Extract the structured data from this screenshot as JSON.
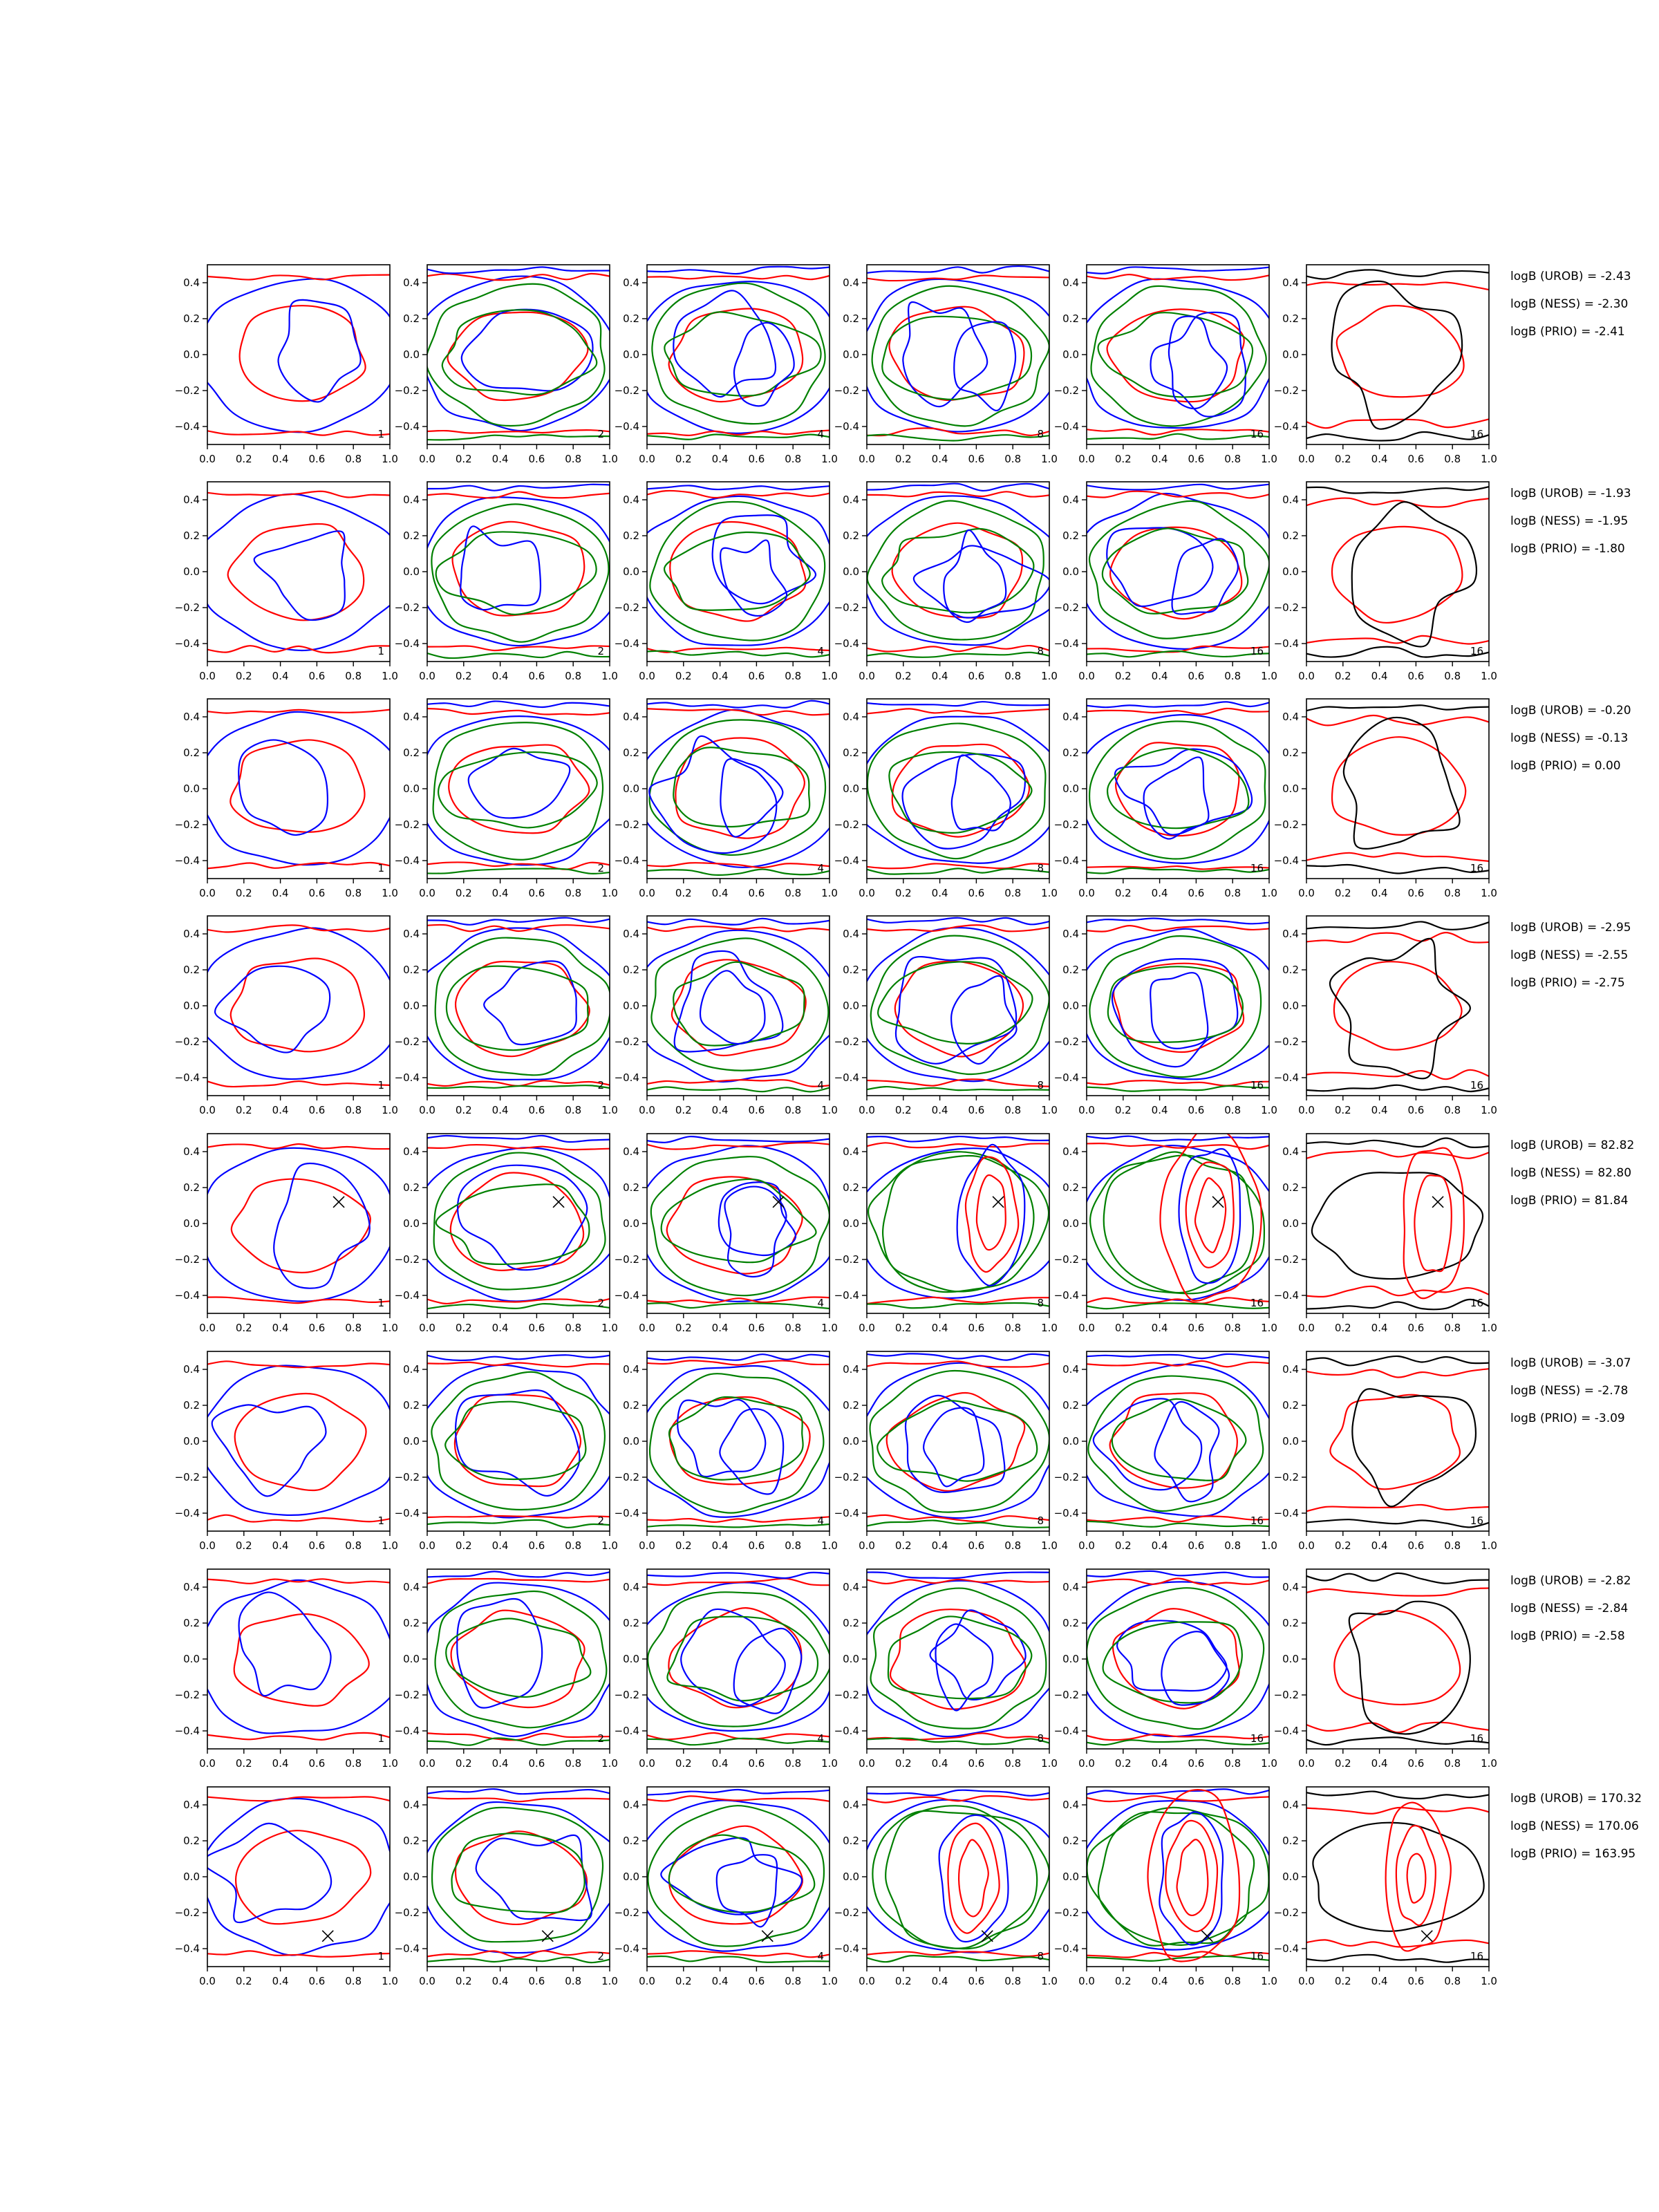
{
  "figure": {
    "rows": 8,
    "cols": 6,
    "panel_labels": [
      "1",
      "2",
      "4",
      "8",
      "16",
      "16"
    ],
    "x_ticks": [
      "0.0",
      "0.2",
      "0.4",
      "0.6",
      "0.8",
      "1.0"
    ],
    "y_ticks": [
      "0.4",
      "0.2",
      "0.0",
      "−0.2",
      "−0.4"
    ],
    "colors": {
      "blue": "#0000ff",
      "green": "#008000",
      "red": "#ff0000",
      "black": "#000000",
      "frame": "#000000"
    },
    "stats": [
      {
        "urob": "logB (UROB) = -2.43",
        "ness": "logB (NESS) = -2.30",
        "prio": "logB (PRIO) = -2.41"
      },
      {
        "urob": "logB (UROB) = -1.93",
        "ness": "logB (NESS) = -1.95",
        "prio": "logB (PRIO) = -1.80"
      },
      {
        "urob": "logB (UROB) = -0.20",
        "ness": "logB (NESS) = -0.13",
        "prio": "logB (PRIO) = 0.00"
      },
      {
        "urob": "logB (UROB) = -2.95",
        "ness": "logB (NESS) = -2.55",
        "prio": "logB (PRIO) = -2.75"
      },
      {
        "urob": "logB (UROB) = 82.82",
        "ness": "logB (NESS) = 82.80",
        "prio": "logB (PRIO) = 81.84"
      },
      {
        "urob": "logB (UROB) = -3.07",
        "ness": "logB (NESS) = -2.78",
        "prio": "logB (PRIO) = -3.09"
      },
      {
        "urob": "logB (UROB) = -2.82",
        "ness": "logB (NESS) = -2.84",
        "prio": "logB (PRIO) = -2.58"
      },
      {
        "urob": "logB (UROB) = 170.32",
        "ness": "logB (NESS) = 170.06",
        "prio": "logB (PRIO) = 163.95"
      }
    ]
  },
  "chart_data": {
    "type": "contour",
    "layout": "8 rows x 6 columns of contour panels",
    "xlim": [
      0.0,
      1.0
    ],
    "ylim": [
      -0.5,
      0.5
    ],
    "grid": false,
    "panel_corner_labels": [
      "1",
      "2",
      "4",
      "8",
      "16",
      "16"
    ],
    "contour_colors": [
      "blue",
      "green",
      "red",
      "black"
    ],
    "markers": [
      {
        "row": 5,
        "marker": "x",
        "x": 0.72,
        "y": 0.12
      },
      {
        "row": 8,
        "marker": "x",
        "x": 0.66,
        "y": -0.33
      }
    ],
    "row_stats": [
      {
        "row": 1,
        "logB_UROB": -2.43,
        "logB_NESS": -2.3,
        "logB_PRIO": -2.41
      },
      {
        "row": 2,
        "logB_UROB": -1.93,
        "logB_NESS": -1.95,
        "logB_PRIO": -1.8
      },
      {
        "row": 3,
        "logB_UROB": -0.2,
        "logB_NESS": -0.13,
        "logB_PRIO": 0.0
      },
      {
        "row": 4,
        "logB_UROB": -2.95,
        "logB_NESS": -2.55,
        "logB_PRIO": -2.75
      },
      {
        "row": 5,
        "logB_UROB": 82.82,
        "logB_NESS": 82.8,
        "logB_PRIO": 81.84
      },
      {
        "row": 6,
        "logB_UROB": -3.07,
        "logB_NESS": -2.78,
        "logB_PRIO": -3.09
      },
      {
        "row": 7,
        "logB_UROB": -2.82,
        "logB_NESS": -2.84,
        "logB_PRIO": -2.58
      },
      {
        "row": 8,
        "logB_UROB": 170.32,
        "logB_NESS": 170.06,
        "logB_PRIO": 163.95
      }
    ]
  }
}
